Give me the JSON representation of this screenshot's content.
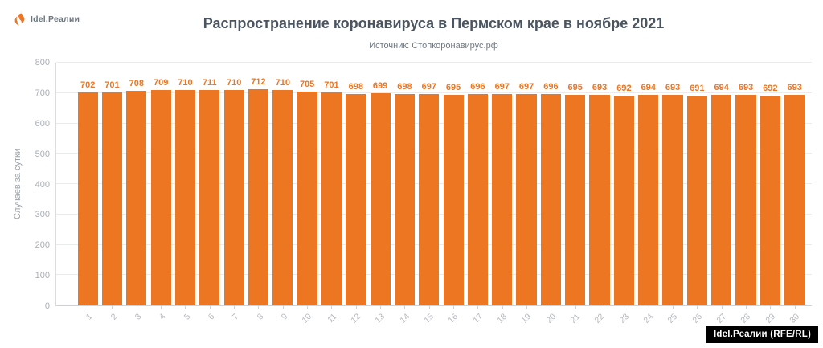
{
  "brand": {
    "logo_text": "Idel.Реалии"
  },
  "chart_data": {
    "type": "bar",
    "title": "Распространение коронавируса в Пермском крае в ноябре 2021",
    "subtitle": "Источник: Стопкоронавирус.рф",
    "xlabel": "",
    "ylabel": "Случаев за сутки",
    "categories": [
      "1",
      "2",
      "3",
      "4",
      "5",
      "6",
      "7",
      "8",
      "9",
      "10",
      "11",
      "12",
      "13",
      "14",
      "15",
      "16",
      "17",
      "18",
      "19",
      "20",
      "21",
      "22",
      "23",
      "24",
      "25",
      "26",
      "27",
      "28",
      "29",
      "30"
    ],
    "values": [
      702,
      701,
      708,
      709,
      710,
      711,
      710,
      712,
      710,
      705,
      701,
      698,
      699,
      698,
      697,
      695,
      696,
      697,
      697,
      696,
      695,
      693,
      692,
      694,
      693,
      691,
      694,
      693,
      692,
      693
    ],
    "ylim": [
      0,
      800
    ],
    "ytick_step": 100,
    "grid": true,
    "legend": "none",
    "bar_color": "#ed7623",
    "value_labels": true
  },
  "colors": {
    "accent_orange": "#ed7623",
    "title_text": "#4a5561",
    "axis_text": "#a9afb5",
    "badge_bg": "#000000",
    "badge_text": "#ffffff"
  },
  "footer": {
    "badge": "Idel.Реалии (RFE/RL)"
  }
}
